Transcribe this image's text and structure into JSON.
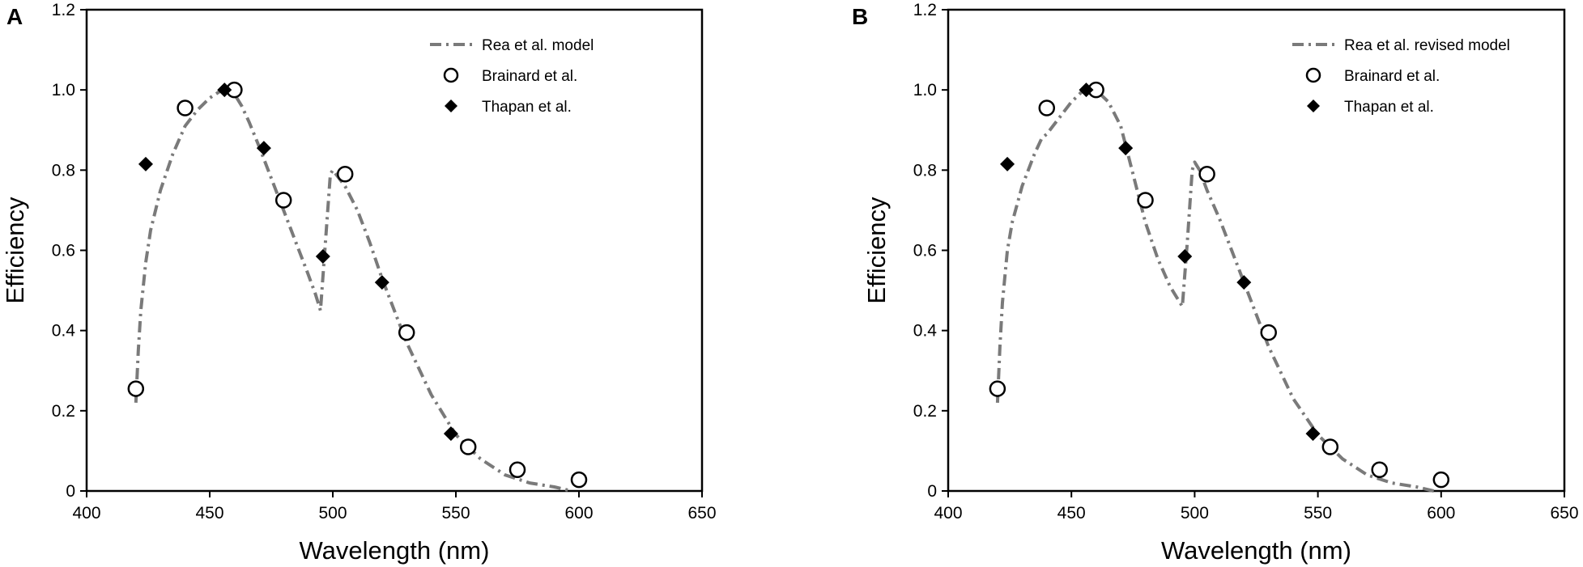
{
  "chart_data": [
    {
      "type": "scatter",
      "panel_label": "A",
      "title": "",
      "xlabel": "Wavelength (nm)",
      "ylabel": "Efficiency",
      "xlim": [
        400,
        650
      ],
      "ylim": [
        0,
        1.2
      ],
      "xticks": [
        400,
        450,
        500,
        550,
        600,
        650
      ],
      "yticks": [
        0,
        0.2,
        0.4,
        0.6,
        0.8,
        1.0,
        1.2
      ],
      "xtick_labels": [
        "400",
        "450",
        "500",
        "550",
        "600",
        "650"
      ],
      "ytick_labels": [
        "0",
        "0.2",
        "0.4",
        "0.6",
        "0.8",
        "1.0",
        "1.2"
      ],
      "grid": false,
      "legend_position": "top-right",
      "series": [
        {
          "name": "Rea et al. model",
          "kind": "line",
          "style": "dash-dot",
          "color": "#7a7a7a",
          "x": [
            420,
            421,
            422,
            424,
            426,
            430,
            435,
            440,
            445,
            450,
            455,
            460,
            463,
            466,
            470,
            475,
            480,
            485,
            490,
            493,
            495,
            497,
            499,
            500,
            505,
            510,
            515,
            520,
            525,
            530,
            540,
            550,
            560,
            570,
            580,
            590,
            597
          ],
          "y": [
            0.22,
            0.35,
            0.45,
            0.57,
            0.65,
            0.75,
            0.84,
            0.91,
            0.95,
            0.98,
            1.0,
            0.99,
            0.96,
            0.92,
            0.86,
            0.78,
            0.7,
            0.62,
            0.54,
            0.49,
            0.45,
            0.62,
            0.79,
            0.8,
            0.76,
            0.7,
            0.62,
            0.53,
            0.45,
            0.37,
            0.24,
            0.14,
            0.08,
            0.04,
            0.02,
            0.01,
            0.0
          ]
        },
        {
          "name": "Brainard et al.",
          "kind": "marker",
          "marker": "open-circle",
          "x": [
            420,
            440,
            460,
            480,
            505,
            530,
            555,
            575,
            600
          ],
          "y": [
            0.255,
            0.955,
            1.0,
            0.725,
            0.79,
            0.395,
            0.11,
            0.053,
            0.028
          ]
        },
        {
          "name": "Thapan et al.",
          "kind": "marker",
          "marker": "filled-diamond",
          "x": [
            424,
            456,
            472,
            496,
            520,
            548
          ],
          "y": [
            0.815,
            1.0,
            0.855,
            0.585,
            0.52,
            0.143
          ]
        }
      ]
    },
    {
      "type": "scatter",
      "panel_label": "B",
      "title": "",
      "xlabel": "Wavelength (nm)",
      "ylabel": "Efficiency",
      "xlim": [
        400,
        650
      ],
      "ylim": [
        0,
        1.2
      ],
      "xticks": [
        400,
        450,
        500,
        550,
        600,
        650
      ],
      "yticks": [
        0,
        0.2,
        0.4,
        0.6,
        0.8,
        1.0,
        1.2
      ],
      "xtick_labels": [
        "400",
        "450",
        "500",
        "550",
        "600",
        "650"
      ],
      "ytick_labels": [
        "0",
        "0.2",
        "0.4",
        "0.6",
        "0.8",
        "1.0",
        "1.2"
      ],
      "grid": false,
      "legend_position": "top-right",
      "series": [
        {
          "name": "Rea et al. revised model",
          "kind": "line",
          "style": "dash-dot",
          "color": "#7a7a7a",
          "x": [
            420,
            421,
            422,
            424,
            426,
            430,
            435,
            438,
            440,
            445,
            450,
            455,
            460,
            465,
            470,
            475,
            480,
            485,
            490,
            493,
            495,
            497,
            499,
            500,
            502,
            505,
            510,
            515,
            520,
            525,
            530,
            540,
            550,
            560,
            570,
            580,
            590,
            597
          ],
          "y": [
            0.22,
            0.36,
            0.47,
            0.6,
            0.67,
            0.76,
            0.84,
            0.88,
            0.89,
            0.93,
            0.97,
            1.0,
            1.0,
            0.97,
            0.91,
            0.79,
            0.67,
            0.58,
            0.51,
            0.48,
            0.46,
            0.62,
            0.8,
            0.82,
            0.8,
            0.75,
            0.68,
            0.6,
            0.52,
            0.44,
            0.36,
            0.23,
            0.14,
            0.08,
            0.04,
            0.02,
            0.01,
            0.0
          ]
        },
        {
          "name": "Brainard et al.",
          "kind": "marker",
          "marker": "open-circle",
          "x": [
            420,
            440,
            460,
            480,
            505,
            530,
            555,
            575,
            600
          ],
          "y": [
            0.255,
            0.955,
            1.0,
            0.725,
            0.79,
            0.395,
            0.11,
            0.053,
            0.028
          ]
        },
        {
          "name": "Thapan et al.",
          "kind": "marker",
          "marker": "filled-diamond",
          "x": [
            424,
            456,
            472,
            496,
            520,
            548
          ],
          "y": [
            0.815,
            1.0,
            0.855,
            0.585,
            0.52,
            0.143
          ]
        }
      ]
    }
  ]
}
